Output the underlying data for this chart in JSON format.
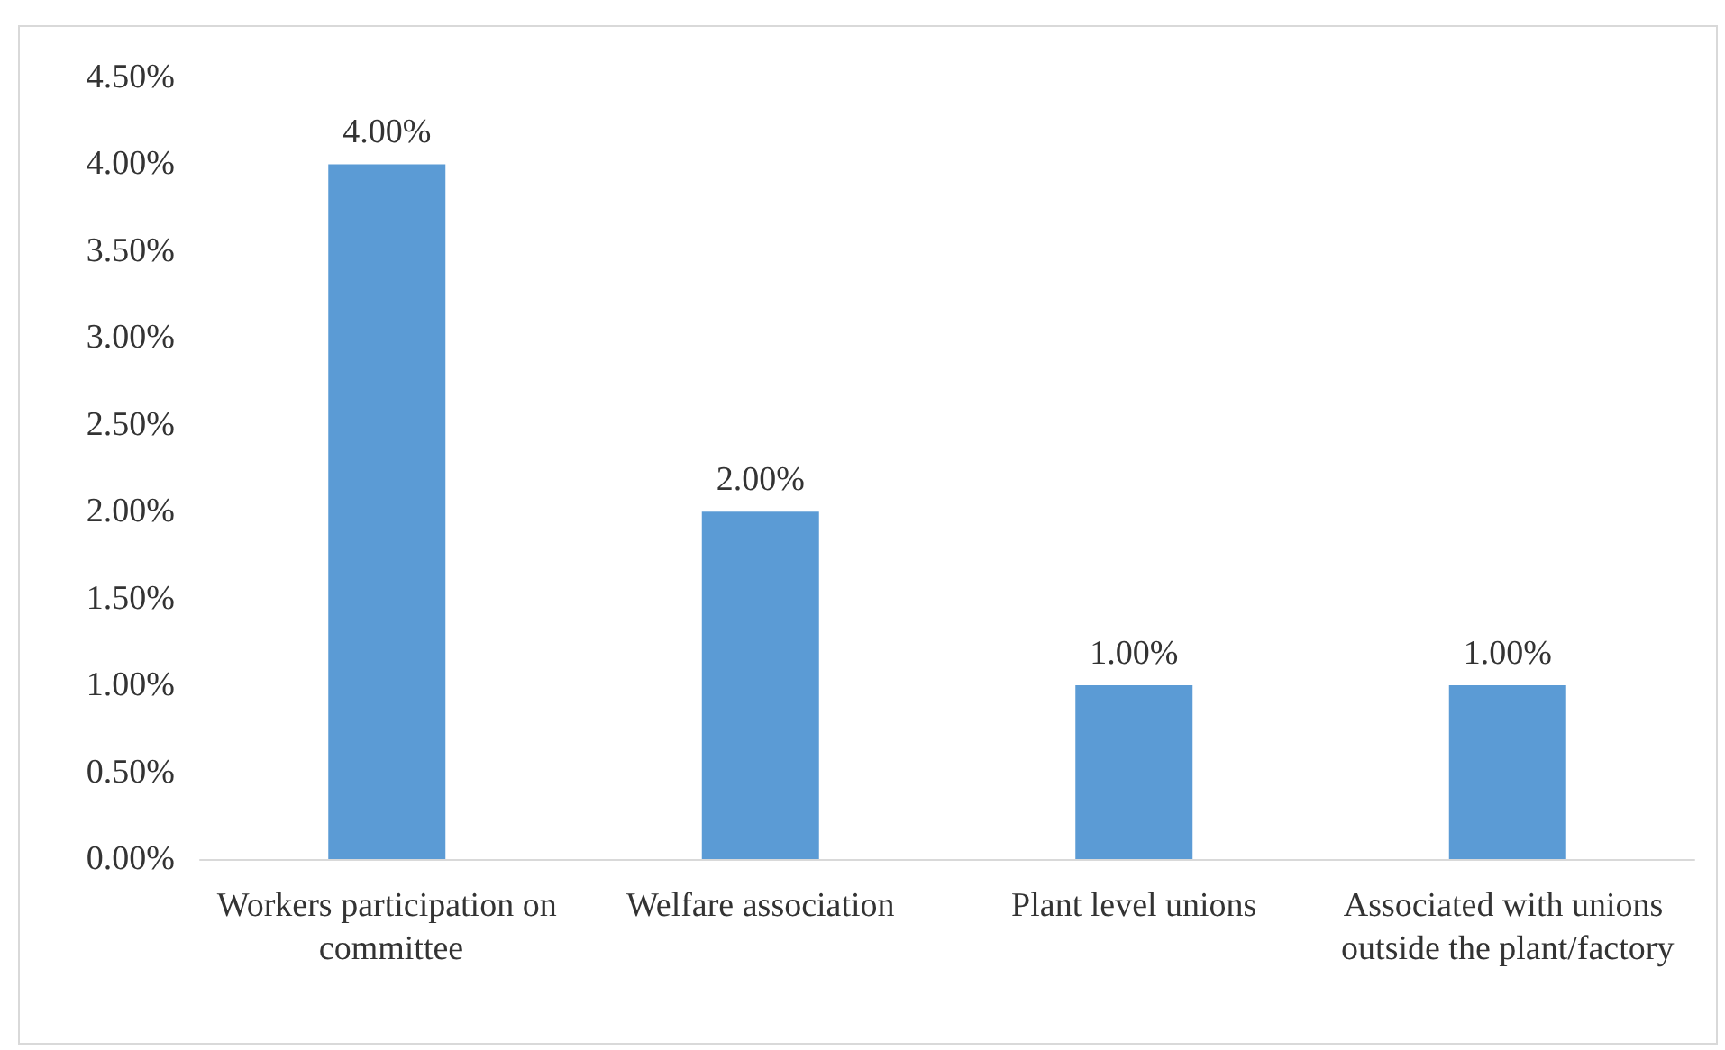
{
  "chart_data": {
    "type": "bar",
    "categories": [
      "Workers participation on committee",
      "Welfare association",
      "Plant level unions",
      "Associated with unions outside the plant/factory"
    ],
    "values": [
      4.0,
      2.0,
      1.0,
      1.0
    ],
    "value_labels": [
      "4.00%",
      "2.00%",
      "1.00%",
      "1.00%"
    ],
    "color": "#5b9bd5",
    "ylim": [
      0,
      4.5
    ],
    "yticks": [
      {
        "value": 0,
        "label": "0.00%"
      },
      {
        "value": 0.5,
        "label": "0.50%"
      },
      {
        "value": 1,
        "label": "1.00%"
      },
      {
        "value": 1.5,
        "label": "1.50%"
      },
      {
        "value": 2,
        "label": "2.00%"
      },
      {
        "value": 2.5,
        "label": "2.50%"
      },
      {
        "value": 3,
        "label": "3.00%"
      },
      {
        "value": 3.5,
        "label": "3.50%"
      },
      {
        "value": 4,
        "label": "4.00%"
      },
      {
        "value": 4.5,
        "label": "4.50%"
      }
    ],
    "grid": false
  }
}
